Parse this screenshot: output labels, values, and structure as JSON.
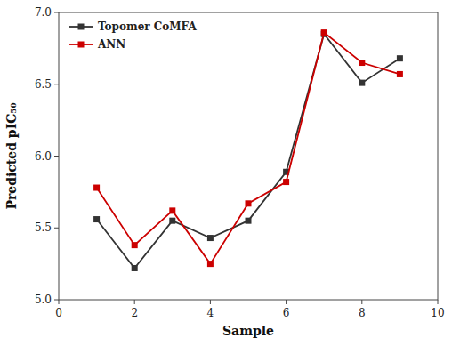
{
  "chart_data": {
    "type": "line",
    "xlabel": "Sample",
    "ylabel": "Predicted pIC₅₀",
    "x": [
      1,
      2,
      3,
      4,
      5,
      6,
      7,
      8,
      9
    ],
    "series": [
      {
        "name": "Topomer CoMFA",
        "color": "#333333",
        "marker": "square",
        "values": [
          5.56,
          5.22,
          5.55,
          5.43,
          5.55,
          5.89,
          6.85,
          6.51,
          6.68
        ]
      },
      {
        "name": "ANN",
        "color": "#cc0000",
        "marker": "square",
        "values": [
          5.78,
          5.38,
          5.62,
          5.25,
          5.67,
          5.82,
          6.86,
          6.65,
          6.57
        ]
      }
    ],
    "xlim": [
      0,
      10
    ],
    "ylim": [
      5.0,
      7.0
    ],
    "xticks": [
      0,
      2,
      4,
      6,
      8,
      10
    ],
    "yticks": [
      {
        "value": 5.0,
        "label": "5.0"
      },
      5.5,
      {
        "value": 6.0,
        "label": "6.0"
      },
      6.5,
      {
        "value": 7.0,
        "label": "7.0"
      }
    ],
    "grid": false,
    "legend": "upper left"
  }
}
